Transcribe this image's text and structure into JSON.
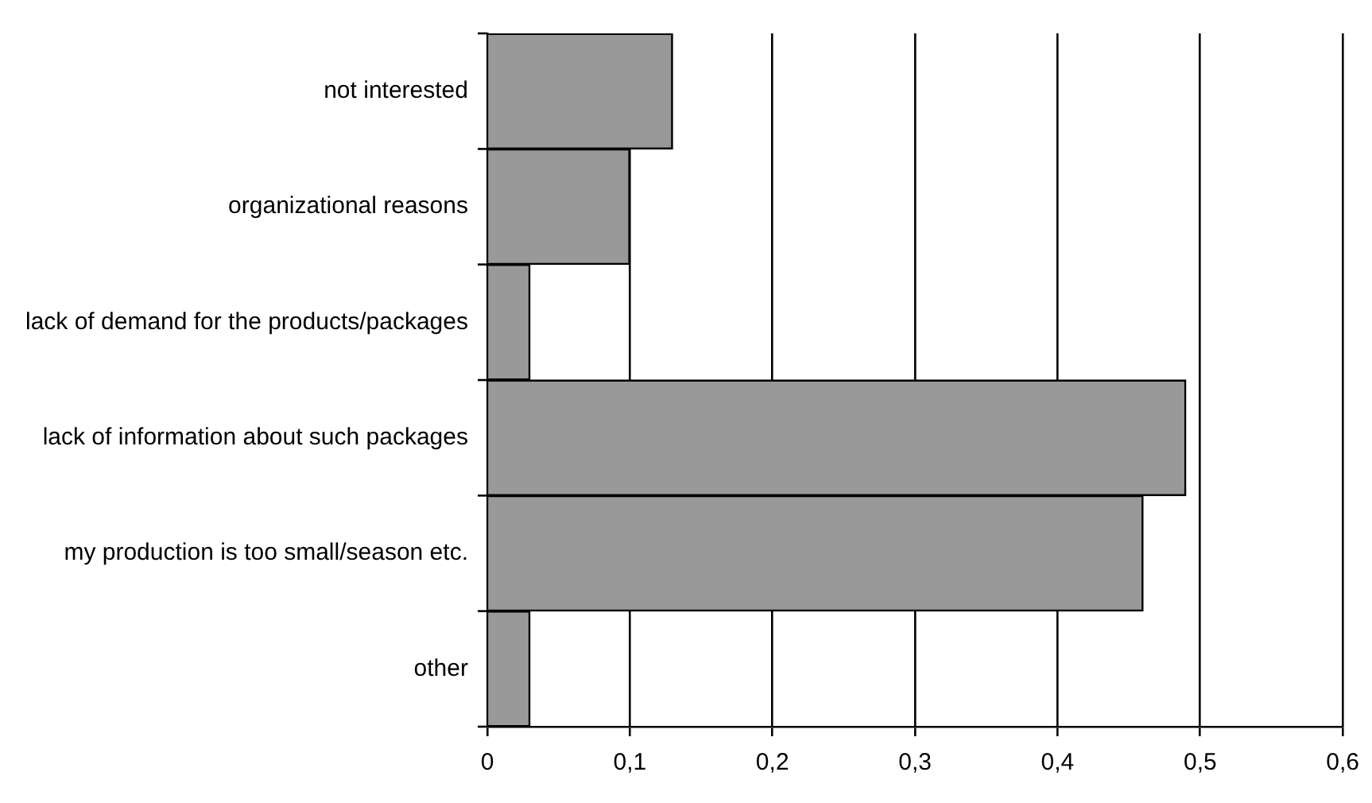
{
  "chart_data": {
    "type": "bar",
    "orientation": "horizontal",
    "categories": [
      "not interested",
      "organizational reasons",
      "lack of demand for the products/packages",
      "lack of information about such packages",
      "my production is too small/season etc.",
      "other"
    ],
    "values": [
      0.13,
      0.1,
      0.03,
      0.49,
      0.46,
      0.03
    ],
    "color": "#999999",
    "xlim": [
      0,
      0.6
    ],
    "xticks": [
      0,
      {
        "value": 0.1,
        "label": "0,1"
      },
      {
        "value": 0.2,
        "label": "0,2"
      },
      {
        "value": 0.3,
        "label": "0,3"
      },
      {
        "value": 0.4,
        "label": "0,4"
      },
      {
        "value": 0.5,
        "label": "0,5"
      },
      {
        "value": 0.6,
        "label": "0,6"
      }
    ],
    "grid": "x",
    "legend": false
  }
}
